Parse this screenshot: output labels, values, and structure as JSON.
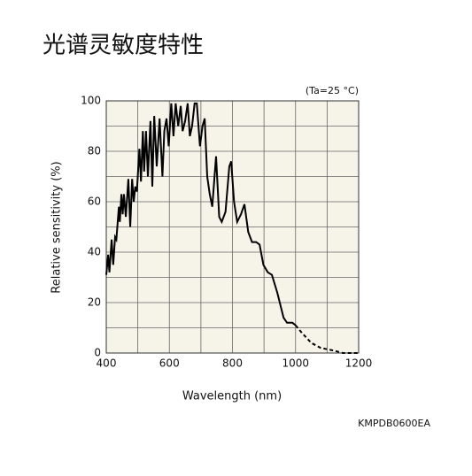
{
  "chart_data": {
    "type": "line",
    "title": "光谱灵敏度特性",
    "annotation": "(Ta=25 °C)",
    "code": "KMPDB0600EA",
    "x_label": "Wavelength (nm)",
    "y_label": "Relative sensitivity (%)",
    "x": [
      400,
      406,
      410,
      417,
      422,
      428,
      432,
      440,
      443,
      448,
      452,
      456,
      462,
      470,
      476,
      482,
      487,
      492,
      497,
      505,
      510,
      516,
      520,
      526,
      532,
      540,
      546,
      552,
      560,
      569,
      578,
      584,
      591,
      598,
      606,
      613,
      620,
      628,
      636,
      642,
      650,
      658,
      665,
      672,
      680,
      687,
      697,
      705,
      712,
      720,
      728,
      736,
      748,
      758,
      766,
      778,
      790,
      796,
      805,
      815,
      827,
      838,
      850,
      862,
      875,
      886,
      898,
      912,
      925,
      942,
      962,
      973,
      990,
      1000,
      1020,
      1050,
      1080,
      1120,
      1150,
      1200
    ],
    "series": [
      {
        "color": "#000000",
        "dashed": false,
        "values": [
          31,
          39,
          32,
          45,
          35,
          46,
          45,
          58,
          52,
          63,
          55,
          63,
          54,
          69,
          50,
          69,
          60,
          66,
          64,
          81,
          68,
          88,
          72,
          88,
          70,
          92,
          66,
          94,
          74,
          93,
          70,
          88,
          93,
          82,
          99,
          86,
          99,
          90,
          98,
          88,
          92,
          99,
          86,
          90,
          99,
          99,
          82,
          90,
          93,
          70,
          63,
          58,
          78,
          54,
          52,
          56,
          74,
          76,
          60,
          52,
          55,
          59,
          48,
          44,
          44,
          43,
          35,
          32,
          31,
          24,
          14,
          12,
          12,
          11,
          null,
          null,
          null,
          null,
          null,
          null
        ]
      },
      {
        "color": "#000000",
        "dashed": true,
        "values": [
          null,
          null,
          null,
          null,
          null,
          null,
          null,
          null,
          null,
          null,
          null,
          null,
          null,
          null,
          null,
          null,
          null,
          null,
          null,
          null,
          null,
          null,
          null,
          null,
          null,
          null,
          null,
          null,
          null,
          null,
          null,
          null,
          null,
          null,
          null,
          null,
          null,
          null,
          null,
          null,
          null,
          null,
          null,
          null,
          null,
          null,
          null,
          null,
          null,
          null,
          null,
          null,
          null,
          null,
          null,
          null,
          null,
          null,
          null,
          null,
          null,
          null,
          null,
          null,
          null,
          null,
          null,
          null,
          null,
          null,
          null,
          null,
          null,
          11,
          8,
          4,
          2,
          1,
          0,
          0
        ]
      }
    ],
    "xlim": [
      400,
      1200
    ],
    "ylim": [
      0,
      100
    ],
    "xticks": [
      400,
      600,
      800,
      1000,
      1200
    ],
    "yticks": [
      0,
      20,
      40,
      60,
      80,
      100
    ],
    "x_minor_ticks": [
      500,
      700,
      900,
      1100
    ],
    "y_minor_ticks": [
      10,
      30,
      50,
      70,
      90
    ],
    "grid": true,
    "plot_background": "#f6f3e9"
  }
}
